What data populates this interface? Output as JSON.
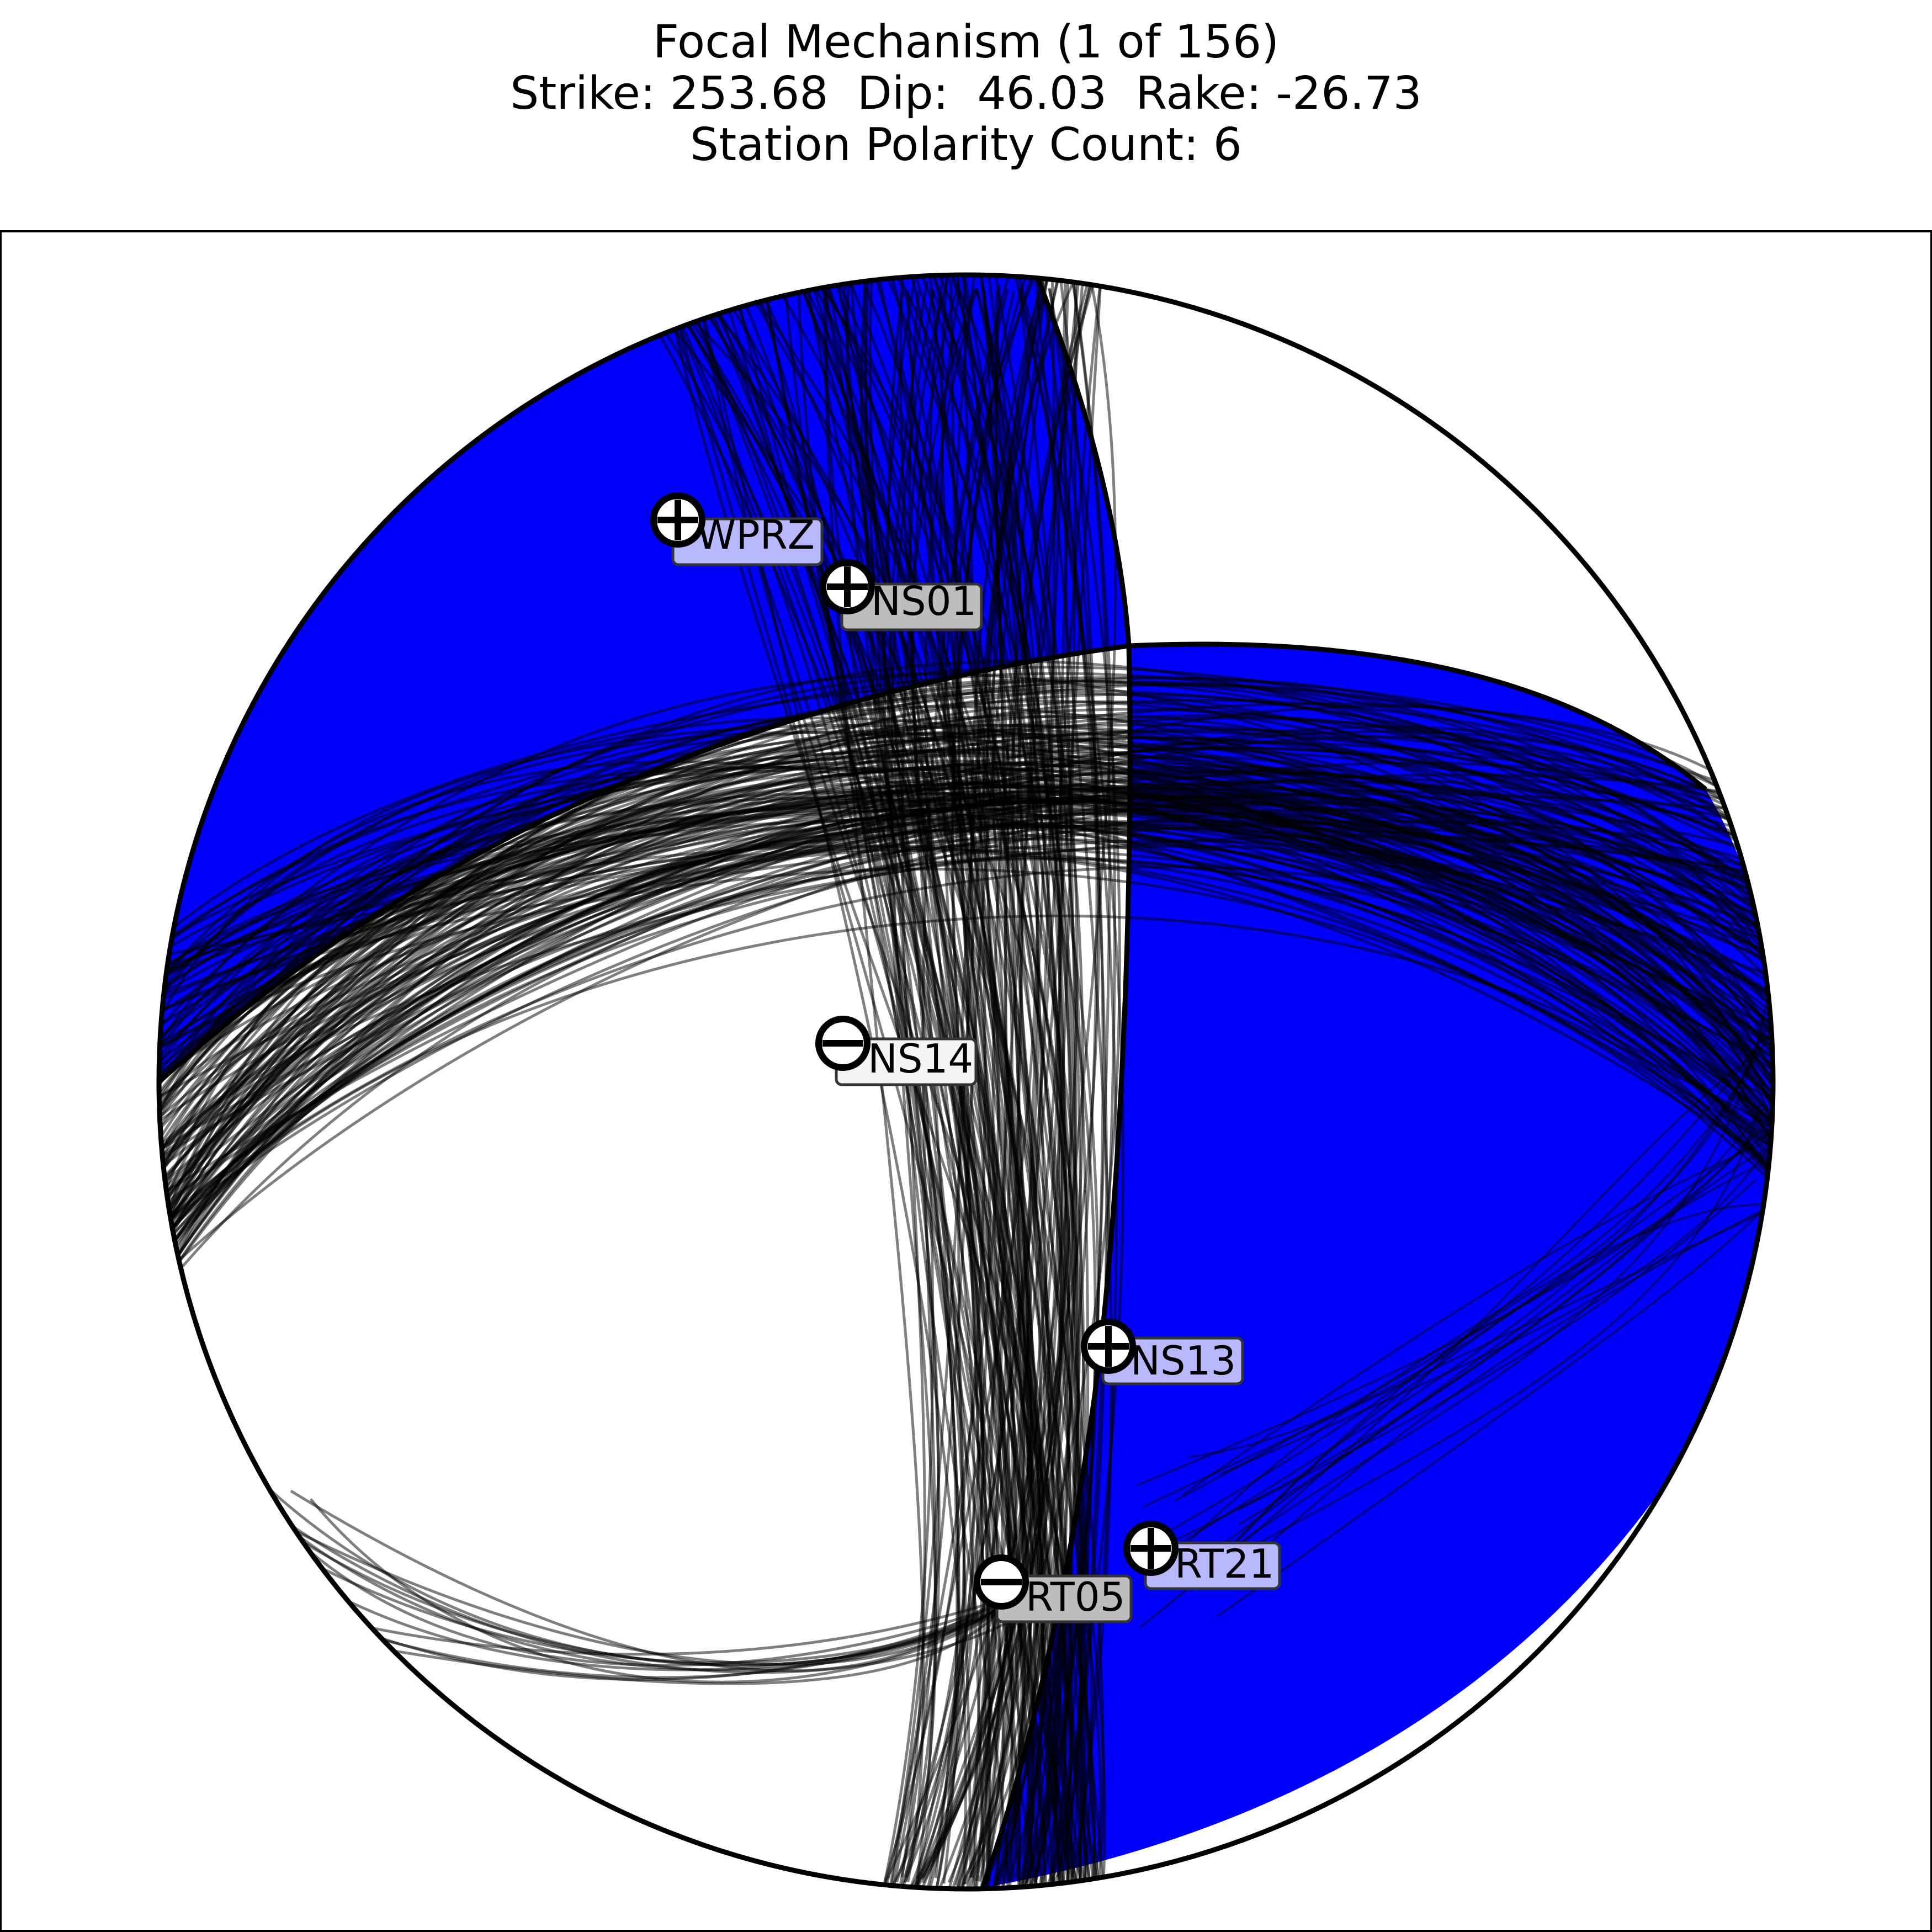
{
  "title": {
    "line1": "Focal Mechanism (1 of 156)",
    "line2": "Strike: 253.68  Dip:  46.03  Rake: -26.73",
    "line3": "Station Polarity Count: 6"
  },
  "mechanism": {
    "strike": 253.68,
    "dip": 46.03,
    "rake": -26.73,
    "solution_index": 1,
    "solution_total": 156
  },
  "colors": {
    "compression_fill": "#0000ff",
    "dilatation_fill": "#ffffff",
    "nodal_lines": "#000000",
    "label_box_light": "#b8b8ff",
    "label_box_gray": "#bdbdbd",
    "label_box_white": "#f4f4f4"
  },
  "stations": [
    {
      "name": "WPRZ",
      "polarity": "+"
    },
    {
      "name": "NS01",
      "polarity": "+"
    },
    {
      "name": "NS14",
      "polarity": "-"
    },
    {
      "name": "NS13",
      "polarity": "+"
    },
    {
      "name": "RT21",
      "polarity": "+"
    },
    {
      "name": "RT05",
      "polarity": "-"
    }
  ]
}
